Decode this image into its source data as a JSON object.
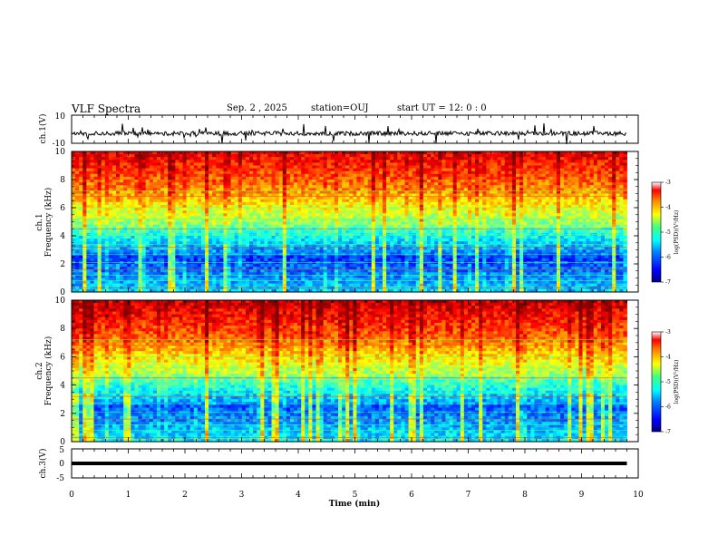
{
  "header": {
    "title": "VLF Spectra",
    "date": "Sep. 2 , 2025",
    "station": "station=OUJ",
    "start": "start UT = 12: 0 : 0"
  },
  "chart_data": [
    {
      "type": "line",
      "name": "ch1-waveform",
      "ylabel": "ch.1(V)",
      "ylim": [
        -10,
        10
      ],
      "yticks": [
        "10",
        "-10"
      ],
      "xlim": [
        0,
        10
      ],
      "x_extent_min": [
        0,
        9.8
      ],
      "baseline_v": -3
    },
    {
      "type": "heatmap",
      "name": "ch1-spectrogram",
      "ylabel_line1": "ch.1",
      "ylabel_line2": "Frequency (kHz)",
      "ylim": [
        0,
        10
      ],
      "yticks": [
        "0",
        "2",
        "4",
        "6",
        "8",
        "10"
      ],
      "xlim": [
        0,
        10
      ],
      "colorbar": {
        "label": "log(PSD)(V²/Hz)",
        "range": [
          -7,
          -3
        ],
        "ticks": [
          "-3",
          "-4",
          "-5",
          "-6",
          "-7"
        ]
      }
    },
    {
      "type": "heatmap",
      "name": "ch2-spectrogram",
      "ylabel_line1": "ch.2",
      "ylabel_line2": "Frequency (kHz)",
      "ylim": [
        0,
        10
      ],
      "yticks": [
        "0",
        "2",
        "4",
        "6",
        "8",
        "10"
      ],
      "xlim": [
        0,
        10
      ],
      "colorbar": {
        "label": "log(PSD)(V²/Hz)",
        "range": [
          -7,
          -3
        ],
        "ticks": [
          "-3",
          "-4",
          "-5",
          "-6",
          "-7"
        ]
      }
    },
    {
      "type": "line",
      "name": "ch3-waveform",
      "ylabel": "ch.3(V)",
      "ylim": [
        -5,
        5
      ],
      "yticks": [
        "5",
        "0",
        "-5"
      ],
      "xlim": [
        0,
        10
      ],
      "x_extent_min": [
        0,
        9.8
      ],
      "constant_v": 0
    }
  ],
  "xaxis": {
    "label": "Time (min)",
    "ticks": [
      "0",
      "1",
      "2",
      "3",
      "4",
      "5",
      "6",
      "7",
      "8",
      "9",
      "10"
    ]
  },
  "colormap": [
    "#00007f",
    "#0000ff",
    "#0080ff",
    "#00ffff",
    "#80ff80",
    "#ffff00",
    "#ff8000",
    "#ff0000",
    "#7f0000"
  ]
}
